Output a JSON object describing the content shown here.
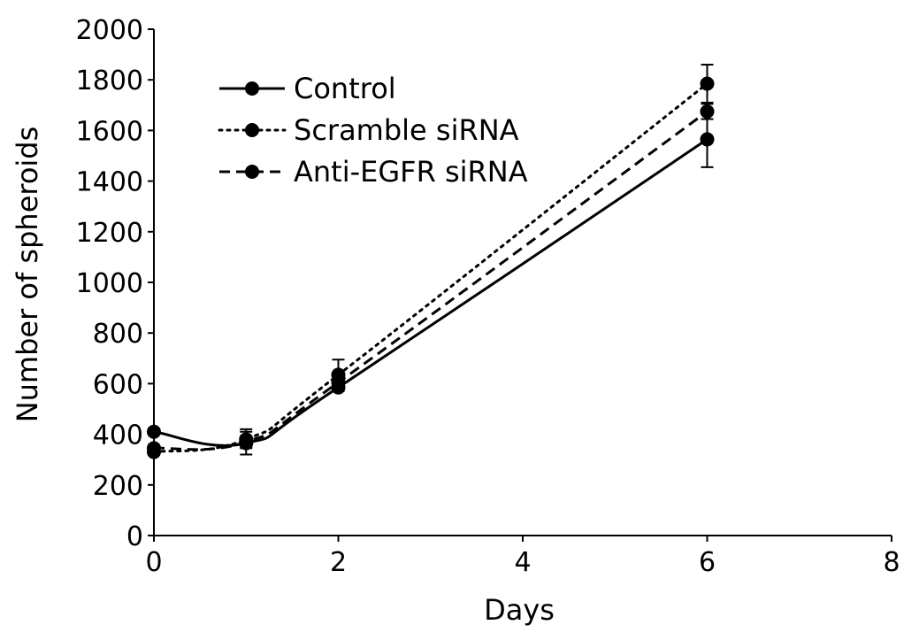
{
  "chart_data": {
    "type": "line",
    "title": "",
    "xlabel": "Days",
    "ylabel": "Number of spheroids",
    "xlim": [
      0,
      8
    ],
    "ylim": [
      0,
      2000
    ],
    "x_ticks": [
      "0",
      "2",
      "4",
      "6",
      "8"
    ],
    "y_ticks": [
      "0",
      "200",
      "400",
      "600",
      "800",
      "1000",
      "1200",
      "1400",
      "1600",
      "1800",
      "2000"
    ],
    "grid": false,
    "legend_position": "top-left",
    "series": [
      {
        "name": "Control",
        "line_style": "solid",
        "color": "#000000",
        "x": [
          0,
          1,
          2,
          6
        ],
        "y": [
          410,
          365,
          585,
          1565
        ],
        "error": [
          0,
          20,
          15,
          110
        ]
      },
      {
        "name": "Scramble siRNA",
        "line_style": "dotted",
        "color": "#000000",
        "x": [
          0,
          1,
          2,
          6
        ],
        "y": [
          330,
          380,
          635,
          1785
        ],
        "error": [
          0,
          30,
          60,
          75
        ]
      },
      {
        "name": "Anti-EGFR siRNA",
        "line_style": "dashed",
        "color": "#000000",
        "x": [
          0,
          1,
          2,
          6
        ],
        "y": [
          345,
          370,
          605,
          1675
        ],
        "error": [
          0,
          50,
          25,
          30
        ]
      }
    ]
  }
}
